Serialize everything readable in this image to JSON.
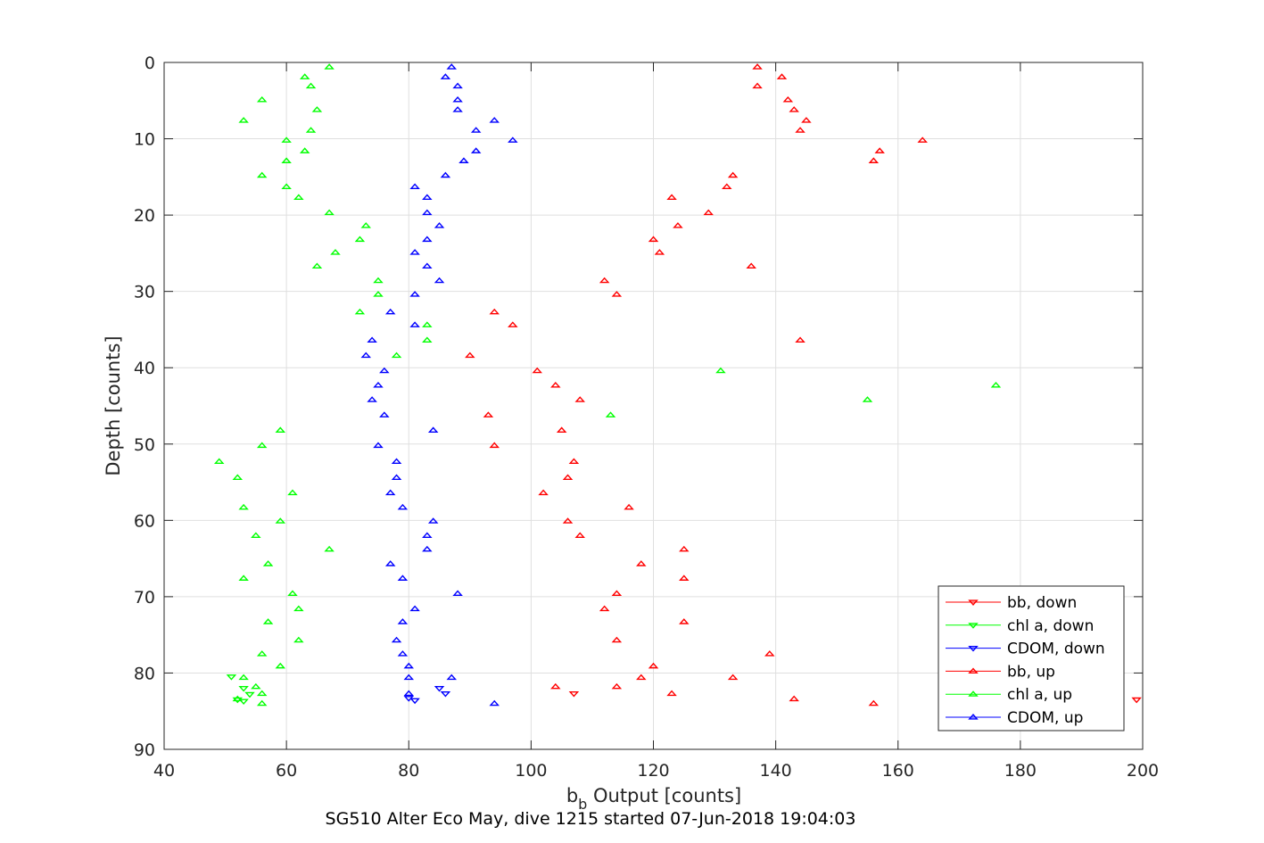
{
  "chart_data": {
    "type": "scatter",
    "title": "SG510 Alter Eco May, dive 1215 started 07-Jun-2018 19:04:03",
    "xlabel_main": "b",
    "xlabel_sub": "b",
    "xlabel_rest": " Output [counts]",
    "ylabel": "Depth [counts]",
    "xlim": [
      40,
      200
    ],
    "ylim": [
      0,
      90
    ],
    "y_reversed": true,
    "grid": true,
    "legend_position": "bottom-right",
    "x_ticks": [
      "40",
      "60",
      "80",
      "100",
      "120",
      "140",
      "160",
      "180",
      "200"
    ],
    "y_ticks": [
      "0",
      "10",
      "20",
      "30",
      "40",
      "50",
      "60",
      "70",
      "80",
      "90"
    ],
    "x_tick_values": [
      40,
      60,
      80,
      100,
      120,
      140,
      160,
      180,
      200
    ],
    "y_tick_values": [
      0,
      10,
      20,
      30,
      40,
      50,
      60,
      70,
      80,
      90
    ],
    "series": [
      {
        "name": "bb, down",
        "color": "#ff0000",
        "marker": "triangle-down",
        "points": [
          [
            107,
            82.7
          ],
          [
            199,
            83.5
          ]
        ]
      },
      {
        "name": "chl a, down",
        "color": "#00ff00",
        "marker": "triangle-down",
        "points": [
          [
            51,
            80.5
          ],
          [
            53,
            82.0
          ],
          [
            54,
            82.8
          ],
          [
            52,
            83.5
          ],
          [
            53,
            83.7
          ]
        ]
      },
      {
        "name": "CDOM, down",
        "color": "#0000ff",
        "marker": "triangle-down",
        "points": [
          [
            85,
            82.0
          ],
          [
            86,
            82.7
          ],
          [
            80,
            83.3
          ],
          [
            81,
            83.6
          ]
        ]
      },
      {
        "name": "bb, up",
        "color": "#ff0000",
        "marker": "triangle-up",
        "points": [
          [
            137,
            0.6
          ],
          [
            141,
            1.9
          ],
          [
            137,
            3.1
          ],
          [
            142,
            4.9
          ],
          [
            143,
            6.2
          ],
          [
            145,
            7.6
          ],
          [
            144,
            8.9
          ],
          [
            164,
            10.2
          ],
          [
            157,
            11.6
          ],
          [
            156,
            12.9
          ],
          [
            133,
            14.8
          ],
          [
            132,
            16.3
          ],
          [
            123,
            17.7
          ],
          [
            129,
            19.7
          ],
          [
            124,
            21.4
          ],
          [
            120,
            23.2
          ],
          [
            121,
            24.9
          ],
          [
            136,
            26.7
          ],
          [
            112,
            28.6
          ],
          [
            114,
            30.4
          ],
          [
            94,
            32.7
          ],
          [
            97,
            34.4
          ],
          [
            144,
            36.4
          ],
          [
            90,
            38.4
          ],
          [
            101,
            40.4
          ],
          [
            104,
            42.3
          ],
          [
            108,
            44.2
          ],
          [
            93,
            46.2
          ],
          [
            105,
            48.2
          ],
          [
            94,
            50.2
          ],
          [
            107,
            52.3
          ],
          [
            106,
            54.4
          ],
          [
            102,
            56.4
          ],
          [
            116,
            58.3
          ],
          [
            106,
            60.1
          ],
          [
            108,
            62.0
          ],
          [
            125,
            63.8
          ],
          [
            118,
            65.7
          ],
          [
            125,
            67.6
          ],
          [
            114,
            69.6
          ],
          [
            112,
            71.6
          ],
          [
            125,
            73.3
          ],
          [
            114,
            75.7
          ],
          [
            139,
            77.5
          ],
          [
            120,
            79.1
          ],
          [
            118,
            80.6
          ],
          [
            133,
            80.6
          ],
          [
            104,
            81.8
          ],
          [
            114,
            81.8
          ],
          [
            123,
            82.7
          ],
          [
            143,
            83.4
          ],
          [
            156,
            84.0
          ]
        ]
      },
      {
        "name": "chl a, up",
        "color": "#00ff00",
        "marker": "triangle-up",
        "points": [
          [
            67,
            0.6
          ],
          [
            63,
            1.9
          ],
          [
            64,
            3.1
          ],
          [
            56,
            4.9
          ],
          [
            65,
            6.2
          ],
          [
            53,
            7.6
          ],
          [
            64,
            8.9
          ],
          [
            60,
            10.2
          ],
          [
            63,
            11.6
          ],
          [
            60,
            12.9
          ],
          [
            56,
            14.8
          ],
          [
            60,
            16.3
          ],
          [
            62,
            17.7
          ],
          [
            67,
            19.7
          ],
          [
            73,
            21.4
          ],
          [
            72,
            23.2
          ],
          [
            68,
            24.9
          ],
          [
            65,
            26.7
          ],
          [
            75,
            28.6
          ],
          [
            75,
            30.4
          ],
          [
            72,
            32.7
          ],
          [
            83,
            34.4
          ],
          [
            83,
            36.4
          ],
          [
            78,
            38.4
          ],
          [
            131,
            40.4
          ],
          [
            176,
            42.3
          ],
          [
            155,
            44.2
          ],
          [
            113,
            46.2
          ],
          [
            59,
            48.2
          ],
          [
            56,
            50.2
          ],
          [
            49,
            52.3
          ],
          [
            52,
            54.4
          ],
          [
            61,
            56.4
          ],
          [
            53,
            58.3
          ],
          [
            59,
            60.1
          ],
          [
            55,
            62.0
          ],
          [
            67,
            63.8
          ],
          [
            57,
            65.7
          ],
          [
            53,
            67.6
          ],
          [
            61,
            69.6
          ],
          [
            62,
            71.6
          ],
          [
            57,
            73.3
          ],
          [
            62,
            75.7
          ],
          [
            56,
            77.5
          ],
          [
            59,
            79.1
          ],
          [
            53,
            80.6
          ],
          [
            55,
            81.8
          ],
          [
            56,
            82.7
          ],
          [
            52,
            83.4
          ],
          [
            56,
            84.0
          ]
        ]
      },
      {
        "name": "CDOM, up",
        "color": "#0000ff",
        "marker": "triangle-up",
        "points": [
          [
            87,
            0.6
          ],
          [
            86,
            1.9
          ],
          [
            88,
            3.1
          ],
          [
            88,
            4.9
          ],
          [
            88,
            6.2
          ],
          [
            94,
            7.6
          ],
          [
            91,
            8.9
          ],
          [
            97,
            10.2
          ],
          [
            91,
            11.6
          ],
          [
            89,
            12.9
          ],
          [
            86,
            14.8
          ],
          [
            81,
            16.3
          ],
          [
            83,
            17.7
          ],
          [
            83,
            19.7
          ],
          [
            85,
            21.4
          ],
          [
            83,
            23.2
          ],
          [
            81,
            24.9
          ],
          [
            83,
            26.7
          ],
          [
            85,
            28.6
          ],
          [
            81,
            30.4
          ],
          [
            77,
            32.7
          ],
          [
            81,
            34.4
          ],
          [
            74,
            36.4
          ],
          [
            73,
            38.4
          ],
          [
            76,
            40.4
          ],
          [
            75,
            42.3
          ],
          [
            74,
            44.2
          ],
          [
            76,
            46.2
          ],
          [
            84,
            48.2
          ],
          [
            75,
            50.2
          ],
          [
            78,
            52.3
          ],
          [
            78,
            54.4
          ],
          [
            77,
            56.4
          ],
          [
            79,
            58.3
          ],
          [
            84,
            60.1
          ],
          [
            83,
            62.0
          ],
          [
            83,
            63.8
          ],
          [
            77,
            65.7
          ],
          [
            79,
            67.6
          ],
          [
            88,
            69.6
          ],
          [
            81,
            71.6
          ],
          [
            79,
            73.3
          ],
          [
            78,
            75.7
          ],
          [
            79,
            77.5
          ],
          [
            80,
            79.1
          ],
          [
            80,
            80.6
          ],
          [
            87,
            80.6
          ],
          [
            80,
            82.7
          ],
          [
            94,
            84.0
          ]
        ]
      }
    ]
  }
}
